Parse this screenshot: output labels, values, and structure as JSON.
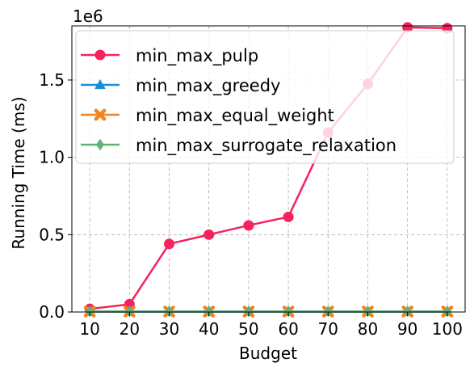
{
  "chart_data": {
    "type": "line",
    "xlabel": "Budget",
    "ylabel": "Running Time (ms)",
    "y_offset_text": "1e6",
    "x": [
      10,
      20,
      30,
      40,
      50,
      60,
      70,
      80,
      90,
      100
    ],
    "x_ticks": [
      "10",
      "20",
      "30",
      "40",
      "50",
      "60",
      "70",
      "80",
      "90",
      "100"
    ],
    "y_ticks": [
      {
        "value": 0.0,
        "label": "0.0"
      },
      {
        "value": 0.5,
        "label": "0.5"
      },
      {
        "value": 1.0,
        "label": "1.0"
      },
      {
        "value": 1.5,
        "label": "1.5"
      }
    ],
    "y_scale_multiplier": 1000000,
    "ylim": [
      0,
      1.85
    ],
    "grid": true,
    "legend_position": "top-left",
    "series": [
      {
        "name": "min_max_pulp",
        "color": "#f7215e",
        "marker": "circle",
        "values": [
          0.02,
          0.05,
          0.44,
          0.5,
          0.56,
          0.615,
          1.16,
          1.475,
          1.84,
          1.835
        ]
      },
      {
        "name": "min_max_greedy",
        "color": "#1790d3",
        "marker": "triangle",
        "values": [
          0.002,
          0.002,
          0.002,
          0.002,
          0.002,
          0.002,
          0.002,
          0.002,
          0.002,
          0.002
        ]
      },
      {
        "name": "min_max_equal_weight",
        "color": "#f28324",
        "marker": "x",
        "values": [
          0.003,
          0.003,
          0.003,
          0.003,
          0.003,
          0.003,
          0.003,
          0.003,
          0.003,
          0.003
        ]
      },
      {
        "name": "min_max_surrogate_relaxation",
        "color": "#5fb275",
        "marker": "diamond",
        "values": [
          0.004,
          0.004,
          0.004,
          0.004,
          0.004,
          0.004,
          0.004,
          0.004,
          0.004,
          0.004
        ]
      }
    ]
  }
}
